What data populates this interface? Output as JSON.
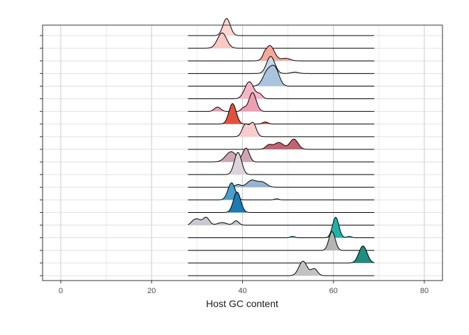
{
  "chart_data": {
    "type": "ridgeline",
    "xlabel": "Host GC content",
    "xlim": [
      -4,
      84
    ],
    "xticks": [
      0,
      20,
      40,
      60,
      80
    ],
    "xtick_labels": [
      "0",
      "20",
      "40",
      "60",
      "80"
    ],
    "grid": true,
    "legend": "none",
    "range_x": [
      28,
      69
    ],
    "rows": [
      {
        "fill": "#fcd5d5",
        "peaks": [
          [
            36.5,
            1.0,
            0.8
          ]
        ]
      },
      {
        "fill": "#fbc9c4",
        "peaks": [
          [
            35.5,
            0.9,
            1.0
          ]
        ]
      },
      {
        "fill": "#f5a99a",
        "peaks": [
          [
            46.0,
            0.9,
            1.0
          ],
          [
            49.5,
            0.15,
            1.0
          ],
          [
            44.8,
            0.12,
            0.3
          ]
        ]
      },
      {
        "fill": "#c9d8e8",
        "peaks": [
          [
            46.2,
            1.0,
            0.9
          ],
          [
            51.5,
            0.08,
            0.8
          ]
        ]
      },
      {
        "fill": "#a9c4dc",
        "peaks": [
          [
            45.5,
            0.85,
            1.0
          ],
          [
            47.2,
            0.95,
            0.9
          ]
        ]
      },
      {
        "fill": "#f7b6c6",
        "peaks": [
          [
            41.5,
            1.0,
            1.0
          ],
          [
            43.8,
            0.25,
            0.6
          ]
        ]
      },
      {
        "fill": "#ee9fb3",
        "peaks": [
          [
            42.2,
            1.1,
            0.8
          ],
          [
            34.5,
            0.25,
            0.7
          ],
          [
            40.2,
            0.2,
            0.5
          ]
        ]
      },
      {
        "fill": "#e0523f",
        "peaks": [
          [
            37.8,
            1.2,
            0.8
          ],
          [
            45.0,
            0.12,
            0.6
          ]
        ]
      },
      {
        "fill": "#f8cccc",
        "peaks": [
          [
            40.6,
            0.7,
            0.7
          ],
          [
            42.3,
            0.8,
            0.7
          ]
        ]
      },
      {
        "fill": "#c26371",
        "peaks": [
          [
            48.0,
            0.4,
            1.0
          ],
          [
            51.3,
            0.6,
            0.9
          ],
          [
            45.8,
            0.25,
            0.7
          ]
        ]
      },
      {
        "fill": "#cfa6b1",
        "peaks": [
          [
            37.5,
            0.6,
            1.2
          ],
          [
            40.8,
            0.8,
            0.7
          ]
        ]
      },
      {
        "fill": "#ddd3dc",
        "peaks": [
          [
            39.0,
            1.3,
            0.8
          ]
        ]
      },
      {
        "fill": "#96b4cf",
        "peaks": [
          [
            42.0,
            0.4,
            1.0
          ],
          [
            44.3,
            0.3,
            1.0
          ],
          [
            39.0,
            0.15,
            0.7
          ]
        ]
      },
      {
        "fill": "#4b9dcb",
        "peaks": [
          [
            37.6,
            1.0,
            0.8
          ],
          [
            47.5,
            0.06,
            0.5
          ]
        ]
      },
      {
        "fill": "#1c7bb0",
        "peaks": [
          [
            38.8,
            1.2,
            0.8
          ]
        ]
      },
      {
        "fill": "#c8c8d2",
        "peaks": [
          [
            30.0,
            0.35,
            0.8
          ],
          [
            32.0,
            0.45,
            0.7
          ],
          [
            35.5,
            0.15,
            1.0
          ],
          [
            38.6,
            0.25,
            0.6
          ],
          [
            29.0,
            0.1,
            0.5
          ]
        ]
      },
      {
        "fill": "#1fb3a7",
        "peaks": [
          [
            60.5,
            1.2,
            0.7
          ],
          [
            51.0,
            0.08,
            0.5
          ],
          [
            63.5,
            0.08,
            0.5
          ]
        ]
      },
      {
        "fill": "#b4b4b4",
        "peaks": [
          [
            59.7,
            1.1,
            0.7
          ]
        ]
      },
      {
        "fill": "#1f8d80",
        "peaks": [
          [
            66.5,
            1.0,
            0.9
          ]
        ]
      },
      {
        "fill": "#c2c2c2",
        "peaks": [
          [
            53.3,
            0.85,
            0.9
          ],
          [
            55.8,
            0.4,
            0.7
          ]
        ]
      }
    ]
  }
}
